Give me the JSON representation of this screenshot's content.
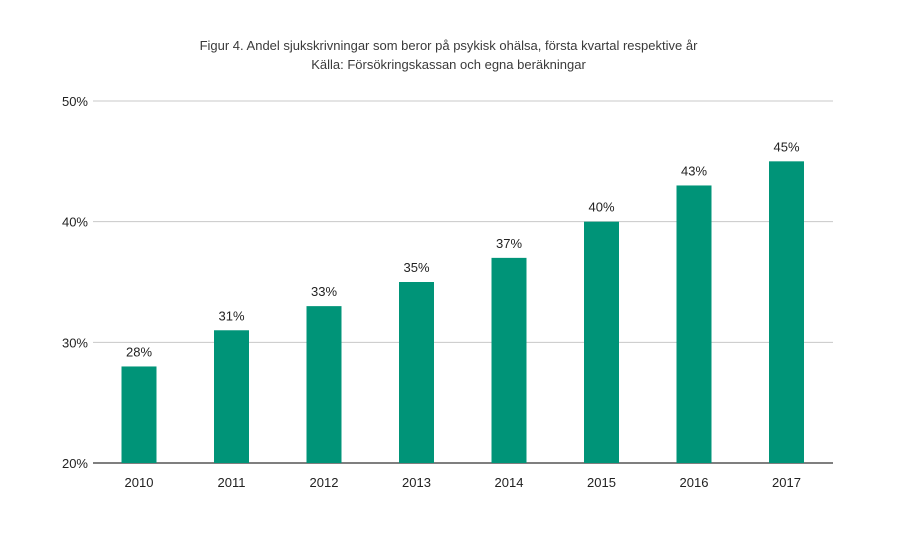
{
  "chart_data": {
    "type": "bar",
    "title": "Figur 4. Andel sjukskrivningar som beror på psykisk ohälsa, första kvartal respektive år",
    "subtitle": "Källa: Försökringskassan och egna beräkningar",
    "categories": [
      "2010",
      "2011",
      "2012",
      "2013",
      "2014",
      "2015",
      "2016",
      "2017"
    ],
    "values": [
      28,
      31,
      33,
      35,
      37,
      40,
      43,
      45
    ],
    "data_labels": [
      "28%",
      "31%",
      "33%",
      "35%",
      "37%",
      "40%",
      "43%",
      "45%"
    ],
    "ylim": [
      20,
      50
    ],
    "yticks": [
      20,
      30,
      40,
      50
    ],
    "ytick_labels": [
      "20%",
      "30%",
      "40%",
      "50%"
    ],
    "xlabel": "",
    "ylabel": "",
    "grid": true,
    "legend": "none",
    "colors": {
      "bar": "#009478",
      "grid": "#c8c8c8",
      "axis": "#333333"
    }
  }
}
